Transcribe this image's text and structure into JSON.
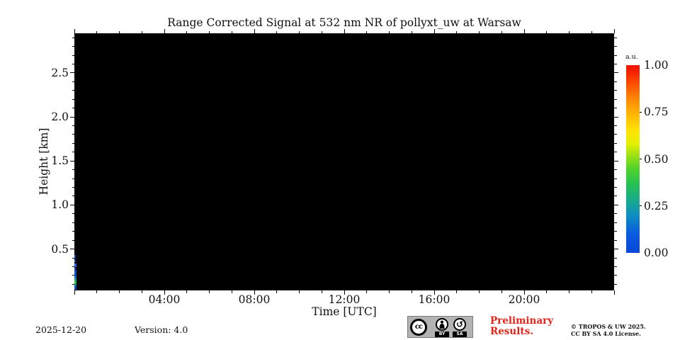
{
  "figure": {
    "title": "Range Corrected Signal at 532 nm NR of pollyxt_uw at Warsaw",
    "xlabel": "Time [UTC]",
    "ylabel": "Height [km]"
  },
  "axes": {
    "x": {
      "range_hours": [
        0,
        24
      ],
      "minor_tick_every_hours": 1,
      "major_tick_every_hours": 4,
      "major_ticks": [
        {
          "hour": 4,
          "label": "04:00"
        },
        {
          "hour": 8,
          "label": "08:00"
        },
        {
          "hour": 12,
          "label": "12:00"
        },
        {
          "hour": 16,
          "label": "16:00"
        },
        {
          "hour": 20,
          "label": "20:00"
        }
      ]
    },
    "y": {
      "range_km": [
        0.03,
        2.95
      ],
      "minor_tick_every_km": 0.1,
      "major_ticks": [
        {
          "km": 0.5,
          "label": "0.5"
        },
        {
          "km": 1.0,
          "label": "1.0"
        },
        {
          "km": 1.5,
          "label": "1.5"
        },
        {
          "km": 2.0,
          "label": "2.0"
        },
        {
          "km": 2.5,
          "label": "2.5"
        }
      ]
    }
  },
  "colorbar": {
    "unit": "a.u.",
    "ticks": [
      {
        "value": 0.0,
        "label": "0.00"
      },
      {
        "value": 0.25,
        "label": "0.25"
      },
      {
        "value": 0.5,
        "label": "0.50"
      },
      {
        "value": 0.75,
        "label": "0.75"
      },
      {
        "value": 1.0,
        "label": "1.00"
      }
    ],
    "colormap": "jet-like blue to red",
    "color_low": "#0846d8",
    "color_high": "#ee1300"
  },
  "footer": {
    "date": "2025-12-20",
    "version_label": "Version: 4.0",
    "license_badge": {
      "cc": "cc",
      "by": "BY",
      "sa": "SA",
      "sa_glyph": "↺"
    },
    "preliminary_line1": "Preliminary",
    "preliminary_line2": "Results.",
    "copyright_line1": "© TROPOS & UW 2025.",
    "copyright_line2": "CC BY SA 4.0 License."
  },
  "colors": {
    "plot_background": "#000000",
    "preliminary_red": "#e2231a",
    "badge_gray": "#b3b3b3"
  },
  "chart_data": {
    "type": "heatmap",
    "title": "Range Corrected Signal at 532 nm NR of pollyxt_uw at Warsaw",
    "xlabel": "Time [UTC]",
    "ylabel": "Height [km]",
    "x_range_hours_utc": [
      0,
      24
    ],
    "x_tick_labels": [
      "04:00",
      "08:00",
      "12:00",
      "16:00",
      "20:00"
    ],
    "y_range_km": [
      0.03,
      2.95
    ],
    "y_tick_labels": [
      "0.5",
      "1.0",
      "1.5",
      "2.0",
      "2.5"
    ],
    "value_unit": "a.u.",
    "value_range": [
      0.0,
      1.0
    ],
    "colorbar_ticks": [
      0.0,
      0.25,
      0.5,
      0.75,
      1.0
    ],
    "background_field": "no signal over nearly the entire time-height plane (rendered black, value below scale)",
    "features": [
      {
        "time_utc": "00:00-00:10",
        "height_km": [
          0.03,
          0.45
        ],
        "description": "narrow near-surface signal streak at the very start of the day: mostly weak (blue, ~0.0-0.1) with a brighter cyan-green segment (~0.3-0.5) between about 0.05 and 0.2 km, plus intermittent blue speckles up to ~0.45 km"
      }
    ],
    "legend_position": "colorbar right",
    "grid": false
  }
}
